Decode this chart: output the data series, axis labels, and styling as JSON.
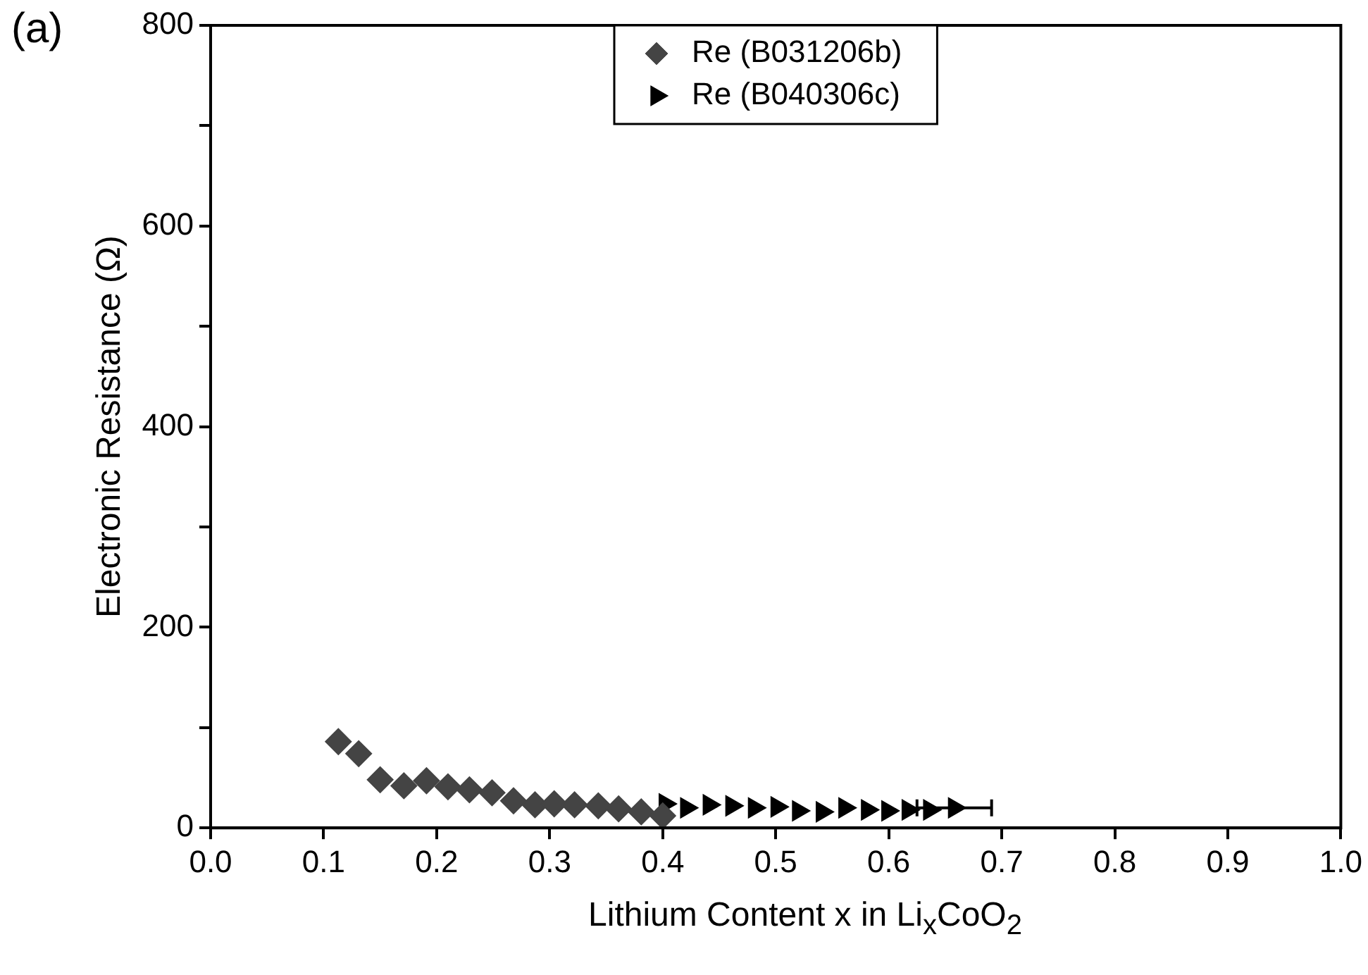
{
  "chart_data": {
    "type": "scatter",
    "xlabel": "Lithium Content x in Li$_{x}$CoO$_{2}$",
    "ylabel": "Electronic Resistance (Ω)",
    "annotations": [
      "(a)"
    ],
    "xlim": [
      0,
      1
    ],
    "xticks": [
      {
        "value": 0,
        "label": "0.0"
      },
      0.1,
      0.2,
      0.3,
      0.4,
      0.5,
      0.6,
      0.7,
      0.8,
      0.9,
      {
        "value": 1,
        "label": "1.0"
      }
    ],
    "ylim": [
      0,
      800
    ],
    "yticks": [
      0,
      {
        "value": 100,
        "label": null
      },
      200,
      {
        "value": 300,
        "label": null
      },
      400,
      {
        "value": 500,
        "label": null
      },
      600,
      {
        "value": 700,
        "label": null
      },
      800
    ],
    "grid": false,
    "legend": "top",
    "series": [
      {
        "name": "Re (B031206b)",
        "color": "#444444",
        "marker": "diamond",
        "x": [
          0.113,
          0.131,
          0.15,
          0.171,
          0.191,
          0.21,
          0.229,
          0.249,
          0.268,
          0.287,
          0.304,
          0.322,
          0.343,
          0.361,
          0.381,
          0.4
        ],
        "values": [
          86,
          74,
          48,
          42,
          47,
          41,
          38,
          35,
          27,
          23,
          24,
          23,
          22,
          19,
          16,
          12
        ]
      },
      {
        "name": "Re (B040306c)",
        "color": "#000000",
        "marker": "triangle",
        "x": [
          0.402,
          0.421,
          0.441,
          0.461,
          0.481,
          0.501,
          0.52,
          0.541,
          0.561,
          0.581,
          0.599,
          0.617,
          0.636,
          0.658
        ],
        "values": [
          24,
          20,
          23,
          22,
          20,
          21,
          17,
          16,
          20,
          18,
          17,
          18,
          18,
          20
        ],
        "xerrors": [
          null,
          null,
          null,
          null,
          null,
          null,
          null,
          null,
          null,
          null,
          null,
          null,
          null,
          0.033
        ]
      }
    ]
  }
}
